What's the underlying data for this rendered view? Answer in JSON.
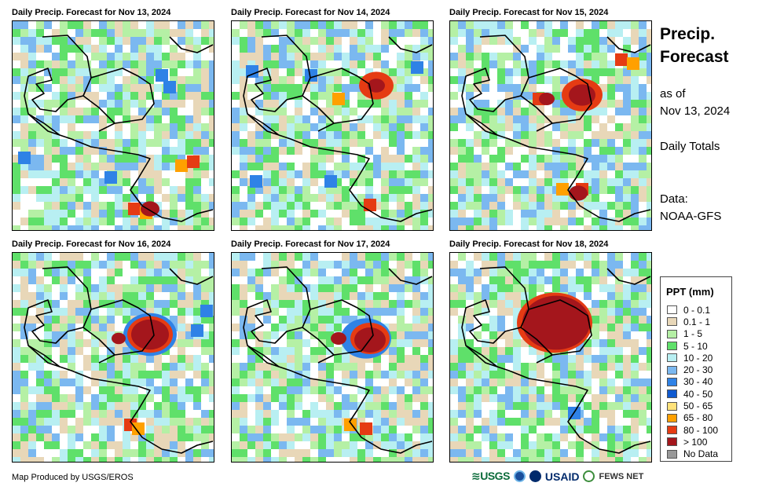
{
  "panels": [
    {
      "title": "Daily Precip. Forecast for Nov 13, 2024",
      "cells": [
        [
          205,
          95,
          "#2f82e6"
        ],
        [
          215,
          110,
          "#2f82e6"
        ],
        [
          230,
          210,
          "#ffa000"
        ],
        [
          245,
          205,
          "#e53b13"
        ],
        [
          170,
          265,
          "#e53b13"
        ],
        [
          185,
          270,
          "#ffa000"
        ],
        [
          140,
          225,
          "#2f82e6"
        ],
        [
          30,
          200,
          "#2f82e6"
        ]
      ],
      "heavy": [
        [
          190,
          265,
          12,
          "#a4161c"
        ]
      ]
    },
    {
      "title": "Daily Precip. Forecast for Nov 14, 2024",
      "cells": [
        [
          320,
          90,
          "#2f82e6"
        ],
        [
          430,
          125,
          "#ffa000"
        ],
        [
          395,
          95,
          "#2f82e6"
        ],
        [
          470,
          260,
          "#e53b13"
        ],
        [
          420,
          230,
          "#2f82e6"
        ],
        [
          530,
          85,
          "#2f82e6"
        ],
        [
          325,
          230,
          "#2f82e6"
        ]
      ],
      "heavy": [
        [
          478,
          108,
          22,
          "#e53b13"
        ],
        [
          478,
          108,
          11,
          "#a4161c"
        ]
      ]
    },
    {
      "title": "Daily Precip. Forecast for Nov 15, 2024",
      "cells": [
        [
          790,
          75,
          "#e53b13"
        ],
        [
          805,
          80,
          "#ffa000"
        ],
        [
          740,
          240,
          "#e53b13"
        ],
        [
          685,
          125,
          "#e53b13"
        ],
        [
          715,
          240,
          "#ffa000"
        ]
      ],
      "heavy": [
        [
          740,
          120,
          26,
          "#e53b13"
        ],
        [
          740,
          120,
          17,
          "#a4161c"
        ],
        [
          695,
          125,
          10,
          "#a4161c"
        ],
        [
          735,
          245,
          12,
          "#a4161c"
        ]
      ]
    },
    {
      "title": "Daily Precip. Forecast for Nov 16, 2024",
      "cells": [
        [
          262,
          395,
          "#2f82e6"
        ],
        [
          250,
          420,
          "#2f82e6"
        ],
        [
          165,
          540,
          "#e53b13"
        ],
        [
          175,
          545,
          "#ffa000"
        ]
      ],
      "heavy": [
        [
          190,
          425,
          34,
          "#2f82e6"
        ],
        [
          190,
          425,
          29,
          "#e53b13"
        ],
        [
          190,
          425,
          24,
          "#a4161c"
        ],
        [
          150,
          430,
          9,
          "#a4161c"
        ]
      ]
    },
    {
      "title": "Daily Precip. Forecast for Nov 17, 2024",
      "cells": [
        [
          465,
          545,
          "#e53b13"
        ],
        [
          445,
          540,
          "#ffa000"
        ]
      ],
      "heavy": [
        [
          465,
          430,
          32,
          "#2f82e6"
        ],
        [
          470,
          430,
          25,
          "#e53b13"
        ],
        [
          470,
          432,
          20,
          "#a4161c"
        ],
        [
          430,
          430,
          10,
          "#a4161c"
        ]
      ]
    },
    {
      "title": "Daily Precip. Forecast for Nov 18, 2024",
      "cells": [
        [
          730,
          525,
          "#2f82e6"
        ]
      ],
      "heavy": [
        [
          705,
          410,
          48,
          "#e53b13"
        ],
        [
          707,
          410,
          43,
          "#a4161c"
        ]
      ]
    }
  ],
  "header": {
    "title_line1": "Precip.",
    "title_line2": "Forecast",
    "as_of_line1": "as of",
    "as_of_line2": "Nov 13, 2024",
    "totals": "Daily Totals",
    "data_line1": "Data:",
    "data_line2": "NOAA-GFS"
  },
  "legend": {
    "title": "PPT (mm)",
    "items": [
      {
        "label": "0 - 0.1",
        "color": "#ffffff"
      },
      {
        "label": "0.1 - 1",
        "color": "#e8d7b8"
      },
      {
        "label": "1 - 5",
        "color": "#b5f0a5"
      },
      {
        "label": "5 - 10",
        "color": "#5fe06a"
      },
      {
        "label": "10 - 20",
        "color": "#b8eff2"
      },
      {
        "label": "20 - 30",
        "color": "#7bb8f0"
      },
      {
        "label": "30 - 40",
        "color": "#2f82e6"
      },
      {
        "label": "40 - 50",
        "color": "#0f5ad0"
      },
      {
        "label": "50 - 65",
        "color": "#ffe27a"
      },
      {
        "label": "65 - 80",
        "color": "#ffa000"
      },
      {
        "label": "80 - 100",
        "color": "#e53b13"
      },
      {
        "label": "> 100",
        "color": "#a4161c"
      },
      {
        "label": "No Data",
        "color": "#999999"
      }
    ]
  },
  "footer": {
    "credit": "Map Produced by USGS/EROS",
    "logo_usgs": "≋USGS",
    "logo_usaid": "USAID",
    "logo_fews": "FEWS NET"
  }
}
